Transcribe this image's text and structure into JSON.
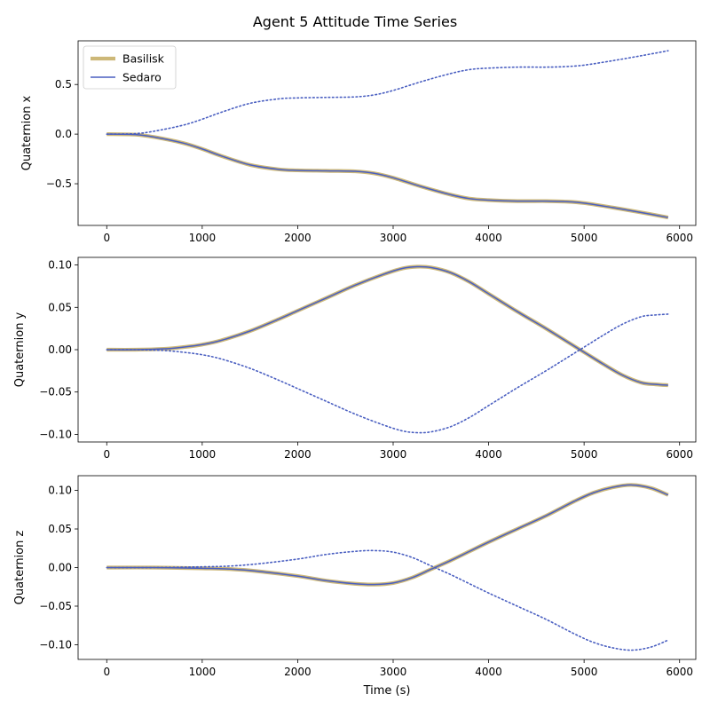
{
  "title": "Agent 5 Attitude Time Series",
  "colors": {
    "basilisk": "#cdb878",
    "sedaro": "#4a5fc1",
    "dotted": "#4a5fc1"
  },
  "legend": {
    "placement": "upper-left",
    "entries": [
      {
        "label": "Basilisk",
        "color": "#cdb878"
      },
      {
        "label": "Sedaro",
        "color": "#4a5fc1"
      }
    ]
  },
  "chart_data": [
    {
      "type": "line",
      "ylabel": "Quaternion x",
      "xlabel": "",
      "xlim": [
        -300,
        6170
      ],
      "ylim": [
        -0.92,
        0.94
      ],
      "xticks": [
        0,
        1000,
        2000,
        3000,
        4000,
        5000,
        6000
      ],
      "yticks": [
        -0.5,
        0.0,
        0.5
      ],
      "ytick_labels": [
        "−0.5",
        "0.0",
        "0.5"
      ],
      "legend": true,
      "series": [
        {
          "name": "Basilisk",
          "style": "thick",
          "x": [
            0,
            300,
            500,
            800,
            1000,
            1200,
            1500,
            1800,
            2000,
            2300,
            2600,
            2800,
            3000,
            3300,
            3600,
            3800,
            4000,
            4300,
            4600,
            4800,
            5000,
            5300,
            5600,
            5880
          ],
          "y": [
            0.0,
            -0.005,
            -0.03,
            -0.09,
            -0.15,
            -0.22,
            -0.31,
            -0.355,
            -0.365,
            -0.37,
            -0.375,
            -0.395,
            -0.44,
            -0.53,
            -0.61,
            -0.65,
            -0.665,
            -0.675,
            -0.675,
            -0.68,
            -0.695,
            -0.74,
            -0.79,
            -0.84
          ]
        },
        {
          "name": "Sedaro",
          "style": "thin",
          "x": [
            0,
            300,
            500,
            800,
            1000,
            1200,
            1500,
            1800,
            2000,
            2300,
            2600,
            2800,
            3000,
            3300,
            3600,
            3800,
            4000,
            4300,
            4600,
            4800,
            5000,
            5300,
            5600,
            5880
          ],
          "y": [
            0.0,
            -0.005,
            -0.03,
            -0.09,
            -0.15,
            -0.22,
            -0.31,
            -0.355,
            -0.365,
            -0.37,
            -0.375,
            -0.395,
            -0.44,
            -0.53,
            -0.61,
            -0.65,
            -0.665,
            -0.675,
            -0.675,
            -0.68,
            -0.695,
            -0.74,
            -0.79,
            -0.84
          ]
        },
        {
          "style": "dotted",
          "x": [
            0,
            300,
            500,
            800,
            1000,
            1200,
            1500,
            1800,
            2000,
            2300,
            2600,
            2800,
            3000,
            3300,
            3600,
            3800,
            4000,
            4300,
            4600,
            4800,
            5000,
            5300,
            5600,
            5880
          ],
          "y": [
            0.0,
            0.005,
            0.03,
            0.09,
            0.15,
            0.22,
            0.31,
            0.355,
            0.365,
            0.37,
            0.375,
            0.395,
            0.44,
            0.53,
            0.61,
            0.65,
            0.665,
            0.675,
            0.675,
            0.68,
            0.695,
            0.74,
            0.79,
            0.84
          ]
        }
      ]
    },
    {
      "type": "line",
      "ylabel": "Quaternion y",
      "xlabel": "",
      "xlim": [
        -300,
        6170
      ],
      "ylim": [
        -0.109,
        0.109
      ],
      "xticks": [
        0,
        1000,
        2000,
        3000,
        4000,
        5000,
        6000
      ],
      "yticks": [
        -0.1,
        -0.05,
        0.0,
        0.05,
        0.1
      ],
      "ytick_labels": [
        "−0.10",
        "−0.05",
        "0.00",
        "0.05",
        "0.10"
      ],
      "legend": false,
      "series": [
        {
          "name": "Basilisk",
          "style": "thick",
          "x": [
            0,
            300,
            600,
            800,
            1000,
            1200,
            1500,
            1800,
            2000,
            2300,
            2600,
            2900,
            3100,
            3250,
            3400,
            3600,
            3800,
            4000,
            4300,
            4600,
            4800,
            5000,
            5200,
            5400,
            5600,
            5750,
            5880
          ],
          "y": [
            0.0,
            0.0,
            0.001,
            0.003,
            0.006,
            0.011,
            0.022,
            0.036,
            0.046,
            0.061,
            0.076,
            0.089,
            0.096,
            0.098,
            0.097,
            0.091,
            0.08,
            0.066,
            0.045,
            0.025,
            0.011,
            -0.003,
            -0.017,
            -0.03,
            -0.039,
            -0.041,
            -0.042
          ]
        },
        {
          "name": "Sedaro",
          "style": "thin",
          "x": [
            0,
            300,
            600,
            800,
            1000,
            1200,
            1500,
            1800,
            2000,
            2300,
            2600,
            2900,
            3100,
            3250,
            3400,
            3600,
            3800,
            4000,
            4300,
            4600,
            4800,
            5000,
            5200,
            5400,
            5600,
            5750,
            5880
          ],
          "y": [
            0.0,
            0.0,
            0.001,
            0.003,
            0.006,
            0.011,
            0.022,
            0.036,
            0.046,
            0.061,
            0.076,
            0.089,
            0.096,
            0.098,
            0.097,
            0.091,
            0.08,
            0.066,
            0.045,
            0.025,
            0.011,
            -0.003,
            -0.017,
            -0.03,
            -0.039,
            -0.041,
            -0.042
          ]
        },
        {
          "style": "dotted",
          "x": [
            0,
            300,
            600,
            800,
            1000,
            1200,
            1500,
            1800,
            2000,
            2300,
            2600,
            2900,
            3100,
            3250,
            3400,
            3600,
            3800,
            4000,
            4300,
            4600,
            4800,
            5000,
            5200,
            5400,
            5600,
            5750,
            5880
          ],
          "y": [
            0.0,
            0.0,
            -0.001,
            -0.003,
            -0.006,
            -0.011,
            -0.022,
            -0.036,
            -0.046,
            -0.061,
            -0.076,
            -0.089,
            -0.096,
            -0.098,
            -0.097,
            -0.091,
            -0.08,
            -0.066,
            -0.045,
            -0.025,
            -0.011,
            0.003,
            0.017,
            0.03,
            0.039,
            0.041,
            0.042
          ]
        }
      ]
    },
    {
      "type": "line",
      "ylabel": "Quaternion z",
      "xlabel": "Time (s)",
      "xlim": [
        -300,
        6170
      ],
      "ylim": [
        -0.119,
        0.119
      ],
      "xticks": [
        0,
        1000,
        2000,
        3000,
        4000,
        5000,
        6000
      ],
      "yticks": [
        -0.1,
        -0.05,
        0.0,
        0.05,
        0.1
      ],
      "ytick_labels": [
        "−0.10",
        "−0.05",
        "0.00",
        "0.05",
        "0.10"
      ],
      "legend": false,
      "series": [
        {
          "name": "Basilisk",
          "style": "thick",
          "x": [
            0,
            500,
            1000,
            1300,
            1600,
            2000,
            2300,
            2600,
            2800,
            3000,
            3200,
            3400,
            3600,
            3800,
            4000,
            4300,
            4600,
            4900,
            5100,
            5300,
            5500,
            5700,
            5880
          ],
          "y": [
            0.0,
            0.0,
            -0.001,
            -0.002,
            -0.005,
            -0.011,
            -0.017,
            -0.021,
            -0.022,
            -0.02,
            -0.013,
            -0.002,
            0.009,
            0.021,
            0.033,
            0.05,
            0.067,
            0.086,
            0.097,
            0.104,
            0.107,
            0.103,
            0.094
          ]
        },
        {
          "name": "Sedaro",
          "style": "thin",
          "x": [
            0,
            500,
            1000,
            1300,
            1600,
            2000,
            2300,
            2600,
            2800,
            3000,
            3200,
            3400,
            3600,
            3800,
            4000,
            4300,
            4600,
            4900,
            5100,
            5300,
            5500,
            5700,
            5880
          ],
          "y": [
            0.0,
            0.0,
            -0.001,
            -0.002,
            -0.005,
            -0.011,
            -0.017,
            -0.021,
            -0.022,
            -0.02,
            -0.013,
            -0.002,
            0.009,
            0.021,
            0.033,
            0.05,
            0.067,
            0.086,
            0.097,
            0.104,
            0.107,
            0.103,
            0.094
          ]
        },
        {
          "style": "dotted",
          "x": [
            0,
            500,
            1000,
            1300,
            1600,
            2000,
            2300,
            2600,
            2800,
            3000,
            3200,
            3400,
            3600,
            3800,
            4000,
            4300,
            4600,
            4900,
            5100,
            5300,
            5500,
            5700,
            5880
          ],
          "y": [
            0.0,
            0.0,
            0.001,
            0.002,
            0.005,
            0.011,
            0.017,
            0.021,
            0.022,
            0.02,
            0.013,
            0.002,
            -0.009,
            -0.021,
            -0.033,
            -0.05,
            -0.067,
            -0.086,
            -0.097,
            -0.104,
            -0.107,
            -0.103,
            -0.094
          ]
        }
      ]
    }
  ]
}
